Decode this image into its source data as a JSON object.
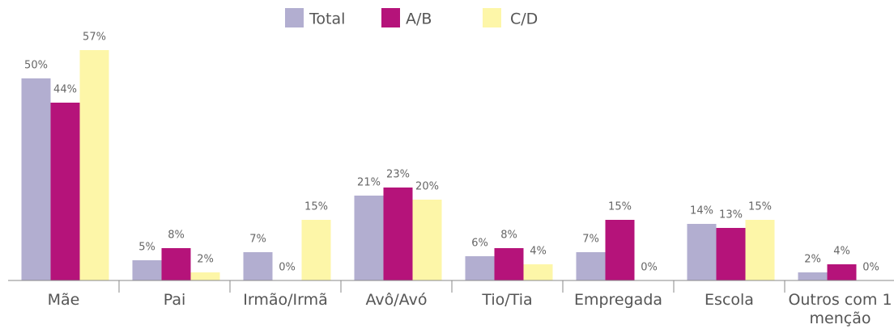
{
  "chart_data": {
    "type": "bar",
    "categories": [
      "Mãe",
      "Pai",
      "Irmão/Irmã",
      "Avô/Avó",
      "Tio/Tia",
      "Empregada",
      "Escola",
      "Outros com 1 menção"
    ],
    "series": [
      {
        "name": "Total",
        "color": "#b2aed0",
        "values": [
          50,
          5,
          7,
          21,
          6,
          7,
          14,
          2
        ],
        "value_labels": [
          "50%",
          "5%",
          "7%",
          "21%",
          "6%",
          "7%",
          "14%",
          "2%"
        ]
      },
      {
        "name": "A/B",
        "color": "#b5137a",
        "values": [
          44,
          8,
          0,
          23,
          8,
          15,
          13,
          4
        ],
        "value_labels": [
          "44%",
          "8%",
          "0%",
          "23%",
          "8%",
          "15%",
          "13%",
          "4%"
        ]
      },
      {
        "name": "C/D",
        "color": "#fdf6a8",
        "values": [
          57,
          2,
          15,
          20,
          4,
          0,
          15,
          0
        ],
        "value_labels": [
          "57%",
          "2%",
          "15%",
          "20%",
          "4%",
          "0%",
          "15%",
          "0%"
        ]
      }
    ],
    "legend": "top"
  }
}
